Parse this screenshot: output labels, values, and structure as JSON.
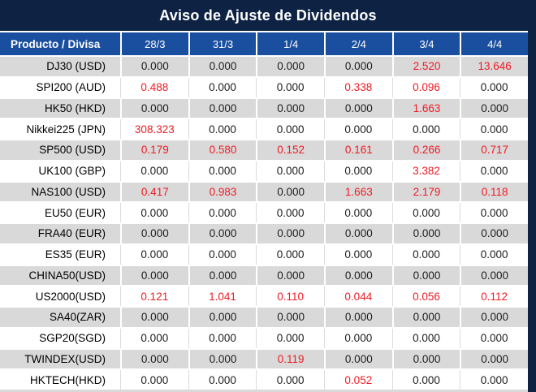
{
  "title": "Aviso de Ajuste de Dividendos",
  "table": {
    "product_header": "Producto / Divisa",
    "date_headers": [
      "28/3",
      "31/3",
      "1/4",
      "2/4",
      "3/4",
      "4/4"
    ],
    "rows": [
      {
        "product": "DJ30 (USD)",
        "values": [
          "0.000",
          "0.000",
          "0.000",
          "0.000",
          "2.520",
          "13.646"
        ],
        "red": [
          4,
          5
        ]
      },
      {
        "product": "SPI200 (AUD)",
        "values": [
          "0.488",
          "0.000",
          "0.000",
          "0.338",
          "0.096",
          "0.000"
        ],
        "red": [
          0,
          3,
          4
        ]
      },
      {
        "product": "HK50 (HKD)",
        "values": [
          "0.000",
          "0.000",
          "0.000",
          "0.000",
          "1.663",
          "0.000"
        ],
        "red": [
          4
        ]
      },
      {
        "product": "Nikkei225 (JPN)",
        "values": [
          "308.323",
          "0.000",
          "0.000",
          "0.000",
          "0.000",
          "0.000"
        ],
        "red": [
          0
        ]
      },
      {
        "product": "SP500 (USD)",
        "values": [
          "0.179",
          "0.580",
          "0.152",
          "0.161",
          "0.266",
          "0.717"
        ],
        "red": [
          0,
          1,
          2,
          3,
          4,
          5
        ]
      },
      {
        "product": "UK100 (GBP)",
        "values": [
          "0.000",
          "0.000",
          "0.000",
          "0.000",
          "3.382",
          "0.000"
        ],
        "red": [
          4
        ]
      },
      {
        "product": "NAS100 (USD)",
        "values": [
          "0.417",
          "0.983",
          "0.000",
          "1.663",
          "2.179",
          "0.118"
        ],
        "red": [
          0,
          1,
          3,
          4,
          5
        ]
      },
      {
        "product": "EU50 (EUR)",
        "values": [
          "0.000",
          "0.000",
          "0.000",
          "0.000",
          "0.000",
          "0.000"
        ],
        "red": []
      },
      {
        "product": "FRA40 (EUR)",
        "values": [
          "0.000",
          "0.000",
          "0.000",
          "0.000",
          "0.000",
          "0.000"
        ],
        "red": []
      },
      {
        "product": "ES35 (EUR)",
        "values": [
          "0.000",
          "0.000",
          "0.000",
          "0.000",
          "0.000",
          "0.000"
        ],
        "red": []
      },
      {
        "product": "CHINA50(USD)",
        "values": [
          "0.000",
          "0.000",
          "0.000",
          "0.000",
          "0.000",
          "0.000"
        ],
        "red": []
      },
      {
        "product": "US2000(USD)",
        "values": [
          "0.121",
          "1.041",
          "0.110",
          "0.044",
          "0.056",
          "0.112"
        ],
        "red": [
          0,
          1,
          2,
          3,
          4,
          5
        ]
      },
      {
        "product": "SA40(ZAR)",
        "values": [
          "0.000",
          "0.000",
          "0.000",
          "0.000",
          "0.000",
          "0.000"
        ],
        "red": []
      },
      {
        "product": "SGP20(SGD)",
        "values": [
          "0.000",
          "0.000",
          "0.000",
          "0.000",
          "0.000",
          "0.000"
        ],
        "red": []
      },
      {
        "product": "TWINDEX(USD)",
        "values": [
          "0.000",
          "0.000",
          "0.119",
          "0.000",
          "0.000",
          "0.000"
        ],
        "red": [
          2
        ]
      },
      {
        "product": "HKTECH(HKD)",
        "values": [
          "0.000",
          "0.000",
          "0.000",
          "0.052",
          "0.000",
          "0.000"
        ],
        "red": [
          3
        ]
      }
    ]
  },
  "colors": {
    "title_bg": "#0e2244",
    "header_bg": "#1a4fa0",
    "stripe": "#d9d9d9",
    "red": "#ee1c25",
    "text": "#1d1d1d"
  }
}
